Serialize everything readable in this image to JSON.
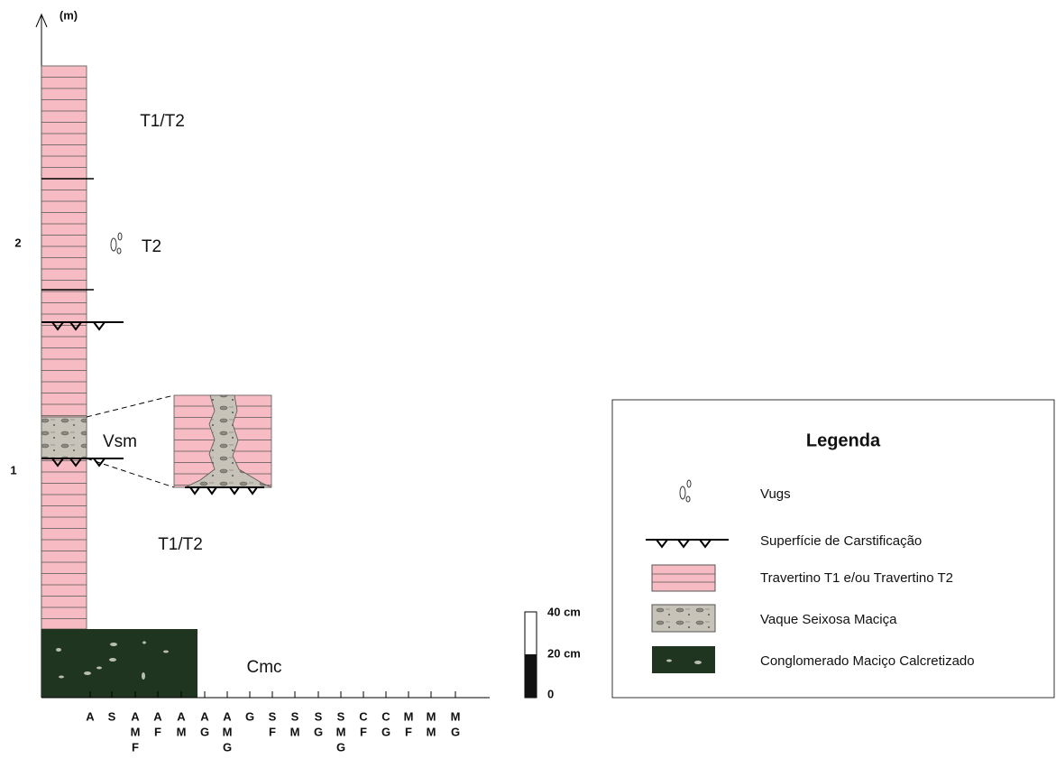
{
  "axis": {
    "unit": "(m)",
    "ticks": [
      "2",
      "1"
    ]
  },
  "units": [
    "T1/T2",
    "T2",
    "Vsm",
    "T1/T2",
    "Cmc"
  ],
  "grain_sizes": [
    [
      "A"
    ],
    [
      "S"
    ],
    [
      "A",
      "M",
      "F"
    ],
    [
      "A",
      "F"
    ],
    [
      "A",
      "M"
    ],
    [
      "A",
      "G"
    ],
    [
      "A",
      "M",
      "G"
    ],
    [
      "G"
    ],
    [
      "S",
      "F"
    ],
    [
      "S",
      "M"
    ],
    [
      "S",
      "G"
    ],
    [
      "S",
      "M",
      "G"
    ],
    [
      "C",
      "F"
    ],
    [
      "C",
      "G"
    ],
    [
      "M",
      "F"
    ],
    [
      "M",
      "M"
    ],
    [
      "M",
      "G"
    ]
  ],
  "scale_bar": [
    "40 cm",
    "20 cm",
    "0"
  ],
  "legend": {
    "title": "Legenda",
    "items": [
      "Vugs",
      "Superfície de Carstificação",
      "Travertino T1 e/ou Travertino T2",
      "Vaque Seixosa Maciça",
      "Conglomerado Maciço Calcretizado"
    ]
  }
}
